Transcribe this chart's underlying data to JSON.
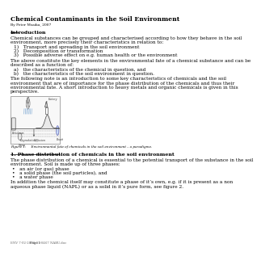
{
  "title": "Chemical Contaminants in the Soil Environment",
  "author": "By Peter Msaika, 2007",
  "intro_heading": "Introduction",
  "intro_text": "Chemical substances can be grouped and characterised according to how they behave in the soil\nenvironment, more precisely their characteristics in relation to:",
  "intro_list": [
    "1)   Transport and spreading in the soil environment",
    "2)   Decomposition or transformation",
    "3)   Possible adverse effect on e.g. human health or the environment"
  ],
  "para1": "The above constitute the key elements in the environmental fate of a chemical substance and can be\ndescribed as a function of:",
  "para1_list": [
    "a)   the characteristics of the chemical in question, and",
    "b)   the characteristics of the soil environment in question."
  ],
  "para2": "The following note is an introduction to some key characteristics of chemicals and the soil\nenvironment that are of importance for the phase distribution of the chemicals and thus their\nenvironmental fate. A short introduction to heavy metals and organic chemicals is given in this\nperspective.",
  "figure_caption": "Figure 1:     Environmental fate of chemicals in the soil environment – a paradigme.",
  "section_heading": "1. Phase distribution of chemicals in the soil environment",
  "section_text": "The phase distribution of a chemical is essential to the potential transport of the substance in the soil\nenvironment. Soil is made up of three phases:",
  "section_list": [
    "•   an air (or gas) phase",
    "•   a solid phase (the soil particles), and",
    "•   a water phase"
  ],
  "section_text2": "In addition the chemical itself may constitute a phase of it’s own, e.g. if it is present as a non\naqueous phase liquid (NAPL) or as a solid in it’s pure form, see figure 2.",
  "footer_left": "ENV 7-02-2006-01-0467 NABU.doc",
  "footer_right": "Page 1",
  "bg_color": "#ffffff",
  "text_color": "#000000",
  "title_color": "#000000"
}
